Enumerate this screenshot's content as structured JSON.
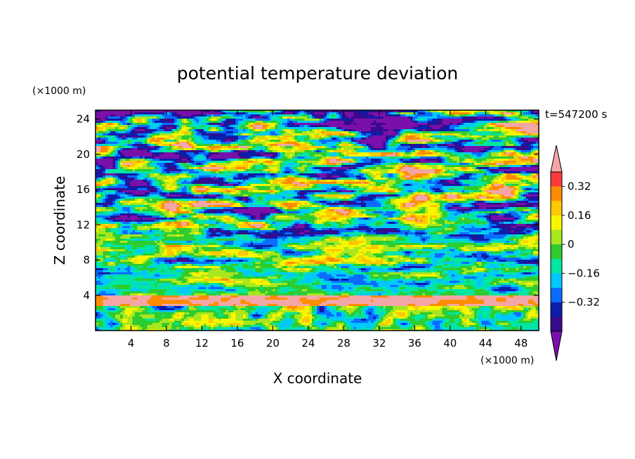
{
  "chart_data": {
    "type": "heatmap",
    "title": "potential temperature deviation",
    "xlabel": "X coordinate",
    "ylabel": "Z coordinate",
    "x_unit": "(×1000 m)",
    "y_unit": "(×1000 m)",
    "time_label": "t=547200 s",
    "xlim": [
      0,
      50
    ],
    "ylim": [
      0,
      25
    ],
    "x_ticks": [
      4,
      8,
      12,
      16,
      20,
      24,
      28,
      32,
      36,
      40,
      44,
      48
    ],
    "y_ticks": [
      4,
      8,
      12,
      16,
      20,
      24
    ],
    "colorbar": {
      "levels": [
        -0.4,
        -0.32,
        -0.24,
        -0.16,
        -0.08,
        0,
        0.08,
        0.16,
        0.24,
        0.32,
        0.4
      ],
      "labels": [
        "0.32",
        "0.16",
        "0",
        "−0.16",
        "−0.32"
      ],
      "label_values": [
        0.32,
        0.16,
        0,
        -0.16,
        -0.32
      ],
      "colors": [
        "#ff3a3a",
        "#ff8c00",
        "#ffc800",
        "#f6f600",
        "#a8e61e",
        "#2ecc2e",
        "#00e6a0",
        "#00c8ff",
        "#0a6cff",
        "#0a1eaa",
        "#3a0a8c"
      ],
      "over_color": "#f4a6a6",
      "under_color": "#7a10aa"
    }
  }
}
